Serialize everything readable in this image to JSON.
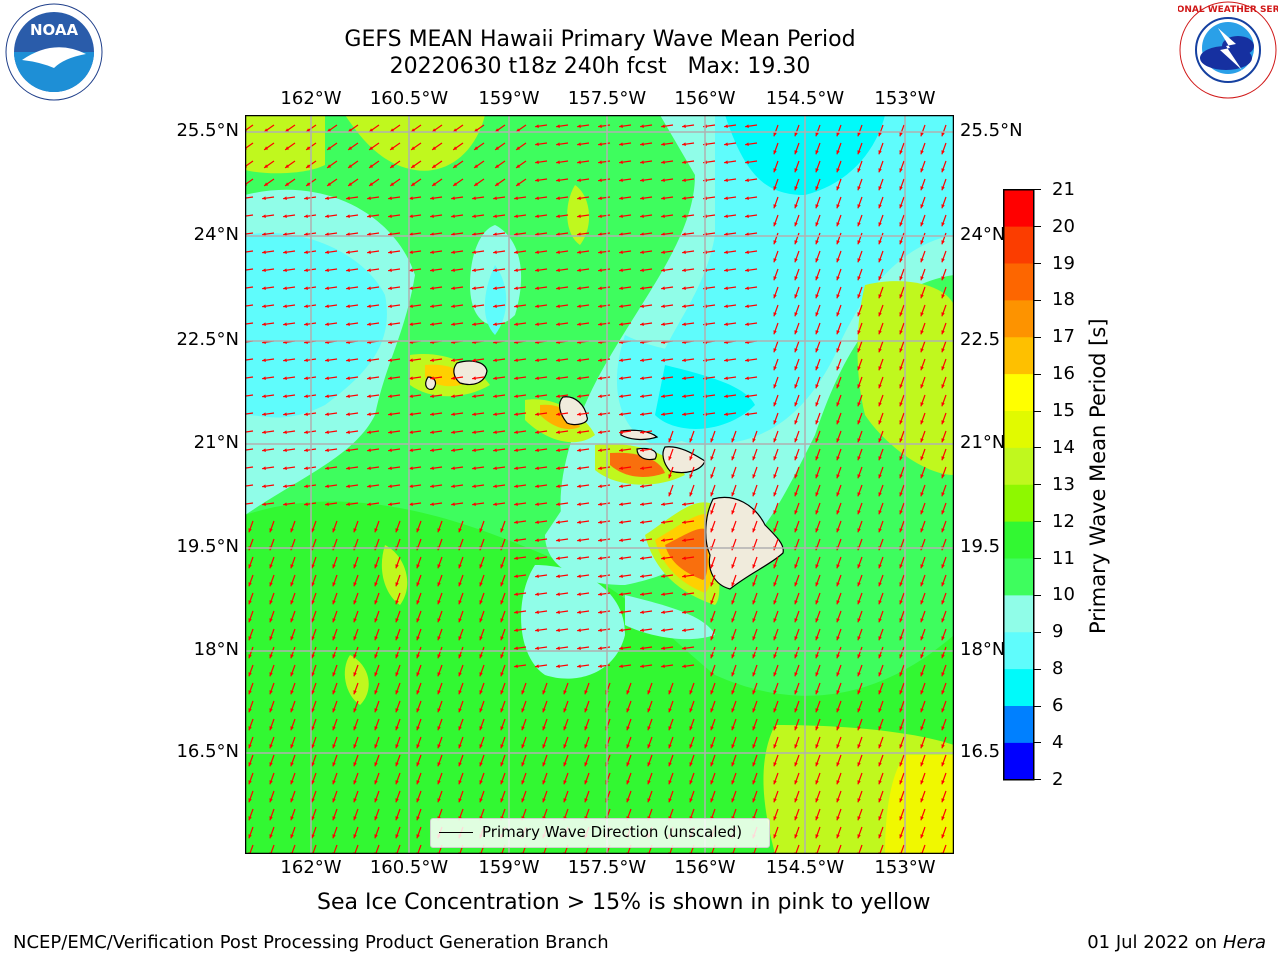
{
  "header": {
    "title_line1": "GEFS MEAN Hawaii Primary Wave Mean Period",
    "title_line2": "20220630 t18z 240h fcst   Max: 19.30",
    "noaa_logo_text": "NOAA",
    "nws_logo_text": "NATIONAL WEATHER SERVICE"
  },
  "map": {
    "lon_labels": [
      "162°W",
      "160.5°W",
      "159°W",
      "157.5°W",
      "156°W",
      "154.5°W",
      "153°W"
    ],
    "lat_labels_left": [
      "25.5°N",
      "24°N",
      "22.5°N",
      "21°N",
      "19.5°N",
      "18°N",
      "16.5°N"
    ],
    "lat_labels_right": [
      "25.5°N",
      "24°N",
      "22.5",
      "21°N",
      "19.5",
      "18°N",
      "16.5"
    ],
    "legend_label": "Primary Wave Direction (unscaled)",
    "colors": {
      "green": "#32f832",
      "light_green": "#3efd5e",
      "pale_cyan": "#90fde8",
      "cyan": "#5ffcfc",
      "bright_cyan": "#00fafa",
      "yellow_green": "#c0f81e",
      "orange": "#f96f0d",
      "arrow": "#ff0000",
      "land": "#f0ebdc"
    }
  },
  "colorbar": {
    "label": "Primary Wave Mean Period [s]",
    "ticks": [
      "21",
      "20",
      "19",
      "18",
      "17",
      "16",
      "15",
      "14",
      "13",
      "12",
      "11",
      "10",
      "9",
      "8",
      "6",
      "4",
      "2"
    ],
    "colors": [
      "#ff0000",
      "#fb3d00",
      "#fd6600",
      "#fd9300",
      "#fec000",
      "#ffff00",
      "#e1fa00",
      "#c0f81e",
      "#8ef800",
      "#32f832",
      "#3efd5e",
      "#90fde8",
      "#5ffcfc",
      "#00fafa",
      "#0080ff",
      "#0000ff"
    ]
  },
  "caption": "Sea Ice Concentration > 15% is shown in pink to yellow",
  "footer": {
    "left": "NCEP/EMC/Verification Post Processing Product Generation Branch",
    "right_date": "01 Jul 2022 on ",
    "right_host": "Hera"
  }
}
